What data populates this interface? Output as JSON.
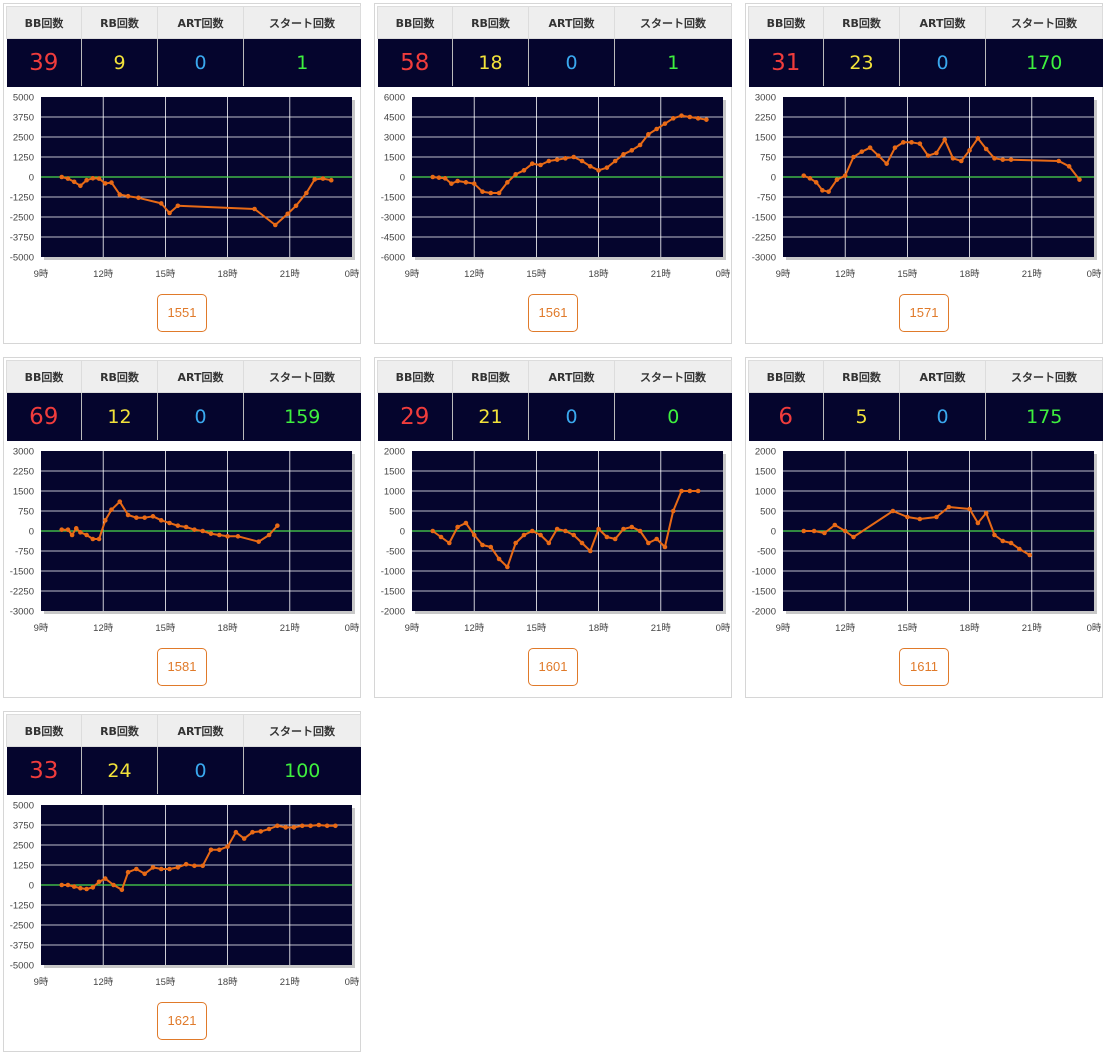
{
  "headers": {
    "bb": "BB回数",
    "rb": "RB回数",
    "art": "ART回数",
    "start": "スタート回数"
  },
  "x_ticks": [
    "9時",
    "12時",
    "15時",
    "18時",
    "21時",
    "0時"
  ],
  "colors": {
    "panel_bg": "#05052d",
    "line": "#e86a16",
    "zero_line": "#4cd94c",
    "bb": "#f03c3c",
    "rb": "#f2e23a",
    "art": "#3aa8ee",
    "start": "#3ef03e",
    "button": "#e07a2a"
  },
  "machines": [
    {
      "id": "1551",
      "stats": {
        "bb": "39",
        "rb": "9",
        "art": "0",
        "start": "1"
      },
      "chart_data": {
        "type": "line",
        "x_unit": "hour",
        "xlim": [
          9,
          24
        ],
        "ylim": [
          -5000,
          5000
        ],
        "y_ticks": [
          "5000",
          "3750",
          "2500",
          "1250",
          "0",
          "-1250",
          "-2500",
          "-3750",
          "-5000"
        ],
        "series": [
          {
            "x": [
              10,
              10.3,
              10.6,
              10.9,
              11.2,
              11.5,
              11.8,
              12.1,
              12.4,
              12.8,
              13.2,
              13.7,
              14.8,
              15.2,
              15.6,
              19.3,
              20.3,
              20.9,
              21.3,
              21.8,
              22.2,
              22.6,
              23
            ],
            "y": [
              0,
              -100,
              -300,
              -550,
              -200,
              -80,
              -100,
              -400,
              -350,
              -1100,
              -1200,
              -1300,
              -1650,
              -2250,
              -1800,
              -2000,
              -3000,
              -2300,
              -1800,
              -1000,
              -150,
              -100,
              -200
            ]
          }
        ]
      }
    },
    {
      "id": "1561",
      "stats": {
        "bb": "58",
        "rb": "18",
        "art": "0",
        "start": "1"
      },
      "chart_data": {
        "type": "line",
        "x_unit": "hour",
        "xlim": [
          9,
          24
        ],
        "ylim": [
          -6000,
          6000
        ],
        "y_ticks": [
          "6000",
          "4500",
          "3000",
          "1500",
          "0",
          "-1500",
          "-3000",
          "-4500",
          "-6000"
        ],
        "series": [
          {
            "x": [
              10,
              10.3,
              10.6,
              10.9,
              11.2,
              11.6,
              12,
              12.4,
              12.8,
              13.2,
              13.6,
              14,
              14.4,
              14.8,
              15.2,
              15.6,
              16,
              16.4,
              16.8,
              17.2,
              17.6,
              18,
              18.4,
              18.8,
              19.2,
              19.6,
              20,
              20.4,
              20.8,
              21.2,
              21.6,
              22,
              22.4,
              22.8,
              23.2
            ],
            "y": [
              0,
              -50,
              -100,
              -500,
              -300,
              -400,
              -500,
              -1100,
              -1200,
              -1200,
              -400,
              200,
              500,
              1000,
              900,
              1200,
              1300,
              1400,
              1500,
              1200,
              800,
              500,
              700,
              1200,
              1700,
              2000,
              2400,
              3200,
              3600,
              4000,
              4400,
              4600,
              4500,
              4400,
              4300
            ]
          }
        ]
      }
    },
    {
      "id": "1571",
      "stats": {
        "bb": "31",
        "rb": "23",
        "art": "0",
        "start": "170"
      },
      "chart_data": {
        "type": "line",
        "x_unit": "hour",
        "xlim": [
          9,
          24
        ],
        "ylim": [
          -3000,
          3000
        ],
        "y_ticks": [
          "3000",
          "2250",
          "1500",
          "750",
          "0",
          "-750",
          "-1500",
          "-2250",
          "-3000"
        ],
        "series": [
          {
            "x": [
              10,
              10.3,
              10.6,
              10.9,
              11.2,
              11.6,
              12,
              12.4,
              12.8,
              13.2,
              13.6,
              14,
              14.4,
              14.8,
              15.2,
              15.6,
              16,
              16.4,
              16.8,
              17.2,
              17.6,
              18,
              18.4,
              18.8,
              19.2,
              19.6,
              20,
              22.3,
              22.8,
              23.3
            ],
            "y": [
              50,
              -50,
              -200,
              -500,
              -550,
              -100,
              50,
              750,
              950,
              1100,
              800,
              500,
              1100,
              1300,
              1300,
              1250,
              800,
              900,
              1400,
              700,
              600,
              1000,
              1450,
              1050,
              700,
              650,
              650,
              600,
              400,
              -100
            ]
          }
        ]
      }
    },
    {
      "id": "1581",
      "stats": {
        "bb": "69",
        "rb": "12",
        "art": "0",
        "start": "159"
      },
      "chart_data": {
        "type": "line",
        "x_unit": "hour",
        "xlim": [
          9,
          24
        ],
        "ylim": [
          -3000,
          3000
        ],
        "y_ticks": [
          "3000",
          "2250",
          "1500",
          "750",
          "0",
          "-750",
          "-1500",
          "-2250",
          "-3000"
        ],
        "series": [
          {
            "x": [
              10,
              10.3,
              10.5,
              10.7,
              10.9,
              11.2,
              11.5,
              11.8,
              12.1,
              12.4,
              12.8,
              13.2,
              13.6,
              14,
              14.4,
              14.8,
              15.2,
              15.6,
              16,
              16.4,
              16.8,
              17.2,
              17.6,
              18,
              18.5,
              19.5,
              20,
              20.4
            ],
            "y": [
              50,
              50,
              -150,
              100,
              -50,
              -150,
              -300,
              -300,
              400,
              800,
              1100,
              600,
              500,
              500,
              550,
              400,
              300,
              200,
              150,
              50,
              0,
              -100,
              -150,
              -200,
              -200,
              -400,
              -150,
              200
            ]
          }
        ]
      }
    },
    {
      "id": "1601",
      "stats": {
        "bb": "29",
        "rb": "21",
        "art": "0",
        "start": "0"
      },
      "chart_data": {
        "type": "line",
        "x_unit": "hour",
        "xlim": [
          9,
          24
        ],
        "ylim": [
          -2000,
          2000
        ],
        "y_ticks": [
          "2000",
          "1500",
          "1000",
          "500",
          "0",
          "-500",
          "-1000",
          "-1500",
          "-2000"
        ],
        "series": [
          {
            "x": [
              10,
              10.4,
              10.8,
              11.2,
              11.6,
              12,
              12.4,
              12.8,
              13.2,
              13.6,
              14,
              14.4,
              14.8,
              15.2,
              15.6,
              16,
              16.4,
              16.8,
              17.2,
              17.6,
              18,
              18.4,
              18.8,
              19.2,
              19.6,
              20,
              20.4,
              20.8,
              21.2,
              21.6,
              22,
              22.4,
              22.8
            ],
            "y": [
              0,
              -150,
              -300,
              100,
              200,
              -100,
              -350,
              -400,
              -700,
              -900,
              -300,
              -100,
              0,
              -100,
              -300,
              50,
              0,
              -100,
              -300,
              -500,
              50,
              -150,
              -200,
              50,
              100,
              0,
              -300,
              -200,
              -400,
              500,
              1000,
              1000,
              1000
            ]
          }
        ]
      }
    },
    {
      "id": "1611",
      "stats": {
        "bb": "6",
        "rb": "5",
        "art": "0",
        "start": "175"
      },
      "chart_data": {
        "type": "line",
        "x_unit": "hour",
        "xlim": [
          9,
          24
        ],
        "ylim": [
          -2000,
          2000
        ],
        "y_ticks": [
          "2000",
          "1500",
          "1000",
          "500",
          "0",
          "-500",
          "-1000",
          "-1500",
          "-2000"
        ],
        "series": [
          {
            "x": [
              10,
              10.5,
              11,
              11.5,
              12,
              12.4,
              14.3,
              15,
              15.6,
              16.4,
              17,
              18,
              18.4,
              18.8,
              19.2,
              19.6,
              20,
              20.4,
              20.9
            ],
            "y": [
              0,
              0,
              -50,
              150,
              0,
              -150,
              500,
              350,
              300,
              350,
              600,
              550,
              200,
              450,
              -100,
              -250,
              -300,
              -450,
              -600
            ]
          }
        ]
      }
    },
    {
      "id": "1621",
      "stats": {
        "bb": "33",
        "rb": "24",
        "art": "0",
        "start": "100"
      },
      "chart_data": {
        "type": "line",
        "x_unit": "hour",
        "xlim": [
          9,
          24
        ],
        "ylim": [
          -5000,
          5000
        ],
        "y_ticks": [
          "5000",
          "3750",
          "2500",
          "1250",
          "0",
          "-1250",
          "-2500",
          "-3750",
          "-5000"
        ],
        "series": [
          {
            "x": [
              10,
              10.3,
              10.6,
              10.9,
              11.2,
              11.5,
              11.8,
              12.1,
              12.5,
              12.9,
              13.2,
              13.6,
              14,
              14.4,
              14.8,
              15.2,
              15.6,
              16,
              16.4,
              16.8,
              17.2,
              17.6,
              18,
              18.4,
              18.8,
              19.2,
              19.6,
              20,
              20.4,
              20.8,
              21.2,
              21.6,
              22,
              22.4,
              22.8,
              23.2
            ],
            "y": [
              0,
              0,
              -100,
              -200,
              -250,
              -150,
              200,
              400,
              0,
              -300,
              800,
              1000,
              700,
              1100,
              1000,
              1000,
              1100,
              1300,
              1200,
              1200,
              2200,
              2200,
              2400,
              3300,
              2900,
              3300,
              3350,
              3500,
              3700,
              3600,
              3600,
              3700,
              3700,
              3750,
              3700,
              3700
            ]
          }
        ]
      }
    }
  ]
}
